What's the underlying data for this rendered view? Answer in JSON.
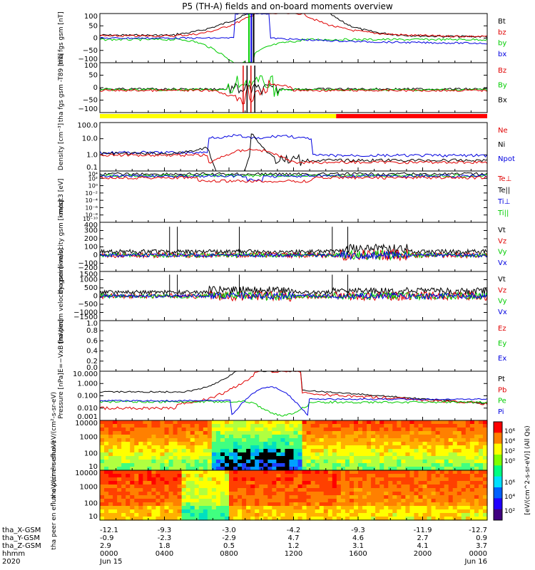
{
  "title": "P5 (TH-A) fields and on-board moments overview",
  "colors": {
    "black": "#000000",
    "red": "#e00000",
    "green": "#00cc00",
    "blue": "#0000e0",
    "yellow": "#ffff00",
    "bar_red": "#ff0000"
  },
  "chart_data": [
    {
      "id": "fgs_gsm",
      "type": "line",
      "ylabel": "tha fgs gsm [nT]",
      "ylim": [
        -100,
        100
      ],
      "yticks": [
        "100",
        "50",
        "0",
        "−50",
        "−100"
      ],
      "legend": [
        {
          "label": "Bt",
          "color": "black"
        },
        {
          "label": "bz",
          "color": "red"
        },
        {
          "label": "by",
          "color": "green"
        },
        {
          "label": "bx",
          "color": "blue"
        }
      ]
    },
    {
      "id": "fgs_gsm_dev",
      "type": "line",
      "ylabel": "tha fgs gsm -T89 [nT]",
      "ylim": [
        -120,
        120
      ],
      "yticks": [
        "100",
        "50",
        "0",
        "−50",
        "−100"
      ],
      "legend": [
        {
          "label": "Bz",
          "color": "red"
        },
        {
          "label": "By",
          "color": "green"
        },
        {
          "label": "Bx",
          "color": "black"
        }
      ]
    },
    {
      "id": "density",
      "type": "line",
      "ylabel": "Density [cm⁻³]",
      "ylog": true,
      "ylim": [
        0.1,
        200
      ],
      "yticks": [
        "100.0",
        "10.0",
        "1.0",
        "0.1"
      ],
      "legend": [
        {
          "label": "Ne",
          "color": "red"
        },
        {
          "label": "Ni",
          "color": "black"
        },
        {
          "label": "Npot",
          "color": "blue"
        }
      ]
    },
    {
      "id": "temperature",
      "type": "line",
      "ylabel": "moqt3 [eV]",
      "ylog": true,
      "yticks": [
        "10⁴",
        "10²",
        "10⁰",
        "10⁻²",
        "10⁻⁴",
        "10⁻⁶",
        "10⁻⁸",
        "10⁻¹⁰"
      ],
      "legend": [
        {
          "label": "Te⊥",
          "color": "red"
        },
        {
          "label": "Te||",
          "color": "black"
        },
        {
          "label": "Ti⊥",
          "color": "blue"
        },
        {
          "label": "Ti||",
          "color": "green"
        }
      ]
    },
    {
      "id": "peim_velocity",
      "type": "line",
      "ylabel": "tha peim velocity gsm [km/s]",
      "ylim": [
        -200,
        400
      ],
      "yticks": [
        "400",
        "300",
        "200",
        "100",
        "0",
        "−100",
        "−200"
      ],
      "legend": [
        {
          "label": "Vt",
          "color": "black"
        },
        {
          "label": "Vz",
          "color": "red"
        },
        {
          "label": "Vy",
          "color": "green"
        },
        {
          "label": "Vx",
          "color": "blue"
        }
      ]
    },
    {
      "id": "peem_velocity",
      "type": "line",
      "ylabel": "tha peem velocity gsm [km/s]",
      "ylim": [
        -1500,
        1500
      ],
      "yticks": [
        "1500",
        "1000",
        "500",
        "0",
        "−500",
        "−1000",
        "−1500"
      ],
      "legend": [
        {
          "label": "Vt",
          "color": "black"
        },
        {
          "label": "Vz",
          "color": "red"
        },
        {
          "label": "Vy",
          "color": "green"
        },
        {
          "label": "Vx",
          "color": "blue"
        }
      ]
    },
    {
      "id": "efield",
      "type": "line",
      "ylabel": "E=−VxB [mV/m]",
      "ylim": [
        0,
        1
      ],
      "yticks": [
        "1.0",
        "0.8",
        "0.6",
        "0.4",
        "0.2",
        "0.0"
      ],
      "legend": [
        {
          "label": "Ez",
          "color": "red"
        },
        {
          "label": "Ey",
          "color": "green"
        },
        {
          "label": "Ex",
          "color": "blue"
        }
      ]
    },
    {
      "id": "pressure",
      "type": "line",
      "ylabel": "Pressure [nPa]",
      "ylog": true,
      "ylim": [
        0.001,
        60
      ],
      "yticks": [
        "10.000",
        "1.000",
        "0.100",
        "0.010",
        "0.001"
      ],
      "legend": [
        {
          "label": "Pt",
          "color": "black"
        },
        {
          "label": "Pb",
          "color": "red"
        },
        {
          "label": "Pe",
          "color": "green"
        },
        {
          "label": "Pi",
          "color": "blue"
        }
      ]
    },
    {
      "id": "peir_eflux",
      "type": "heatmap",
      "ylabel": "tha peir en eflux eV/(cm²-s-sr-eV)",
      "ylog": true,
      "yticks": [
        "10000",
        "1000",
        "100",
        "10"
      ]
    },
    {
      "id": "peer_eflux",
      "type": "heatmap",
      "ylabel": "tha peer en eflux eV/(cm²-s-sr-eV)",
      "ylog": true,
      "yticks": [
        "10000",
        "1000",
        "100",
        "10"
      ]
    }
  ],
  "colorbar": {
    "label": "[eV/(cm^2-s-sr-eV)] (All Qs)",
    "ticks_top": [
      "10⁶",
      "10⁴",
      "10²",
      "10⁰"
    ],
    "ticks_bottom": [
      "10⁶",
      "10⁴",
      "10²"
    ]
  },
  "xaxis": {
    "tick_labels": [
      "0000\nJun 15",
      "0400",
      "0800",
      "1200",
      "1600",
      "2000",
      "0000\nJun 16"
    ],
    "rows": [
      {
        "label": "tha_X-GSM",
        "values": [
          "-12.1",
          "-9.3",
          "-3.0",
          "-4.2",
          "-9.3",
          "-11.9",
          "-12.7"
        ]
      },
      {
        "label": "tha_Y-GSM",
        "values": [
          "-0.9",
          "-2.3",
          "-2.9",
          "4.7",
          "4.6",
          "2.7",
          "0.9"
        ]
      },
      {
        "label": "tha_Z-GSM",
        "values": [
          "2.9",
          "1.8",
          "0.5",
          "1.2",
          "3.1",
          "4.1",
          "3.7"
        ]
      },
      {
        "label": "hhmm",
        "values": [
          "0000",
          "0400",
          "0800",
          "1200",
          "1600",
          "2000",
          "0000"
        ]
      },
      {
        "label": "2020",
        "values": [
          "Jun 15",
          "",
          "",
          "",
          "",
          "",
          "Jun 16"
        ]
      }
    ]
  }
}
